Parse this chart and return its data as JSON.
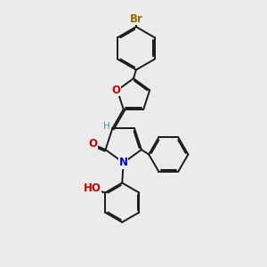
{
  "bg_color": "#ebebeb",
  "bond_color": "#1a1a1a",
  "bond_width": 1.4,
  "dbo": 0.06,
  "atom_colors": {
    "Br": "#996600",
    "O": "#cc0000",
    "N": "#0000cc",
    "H": "#3a9a9a"
  },
  "font_size": 8.5,
  "font_size_h": 7.5
}
